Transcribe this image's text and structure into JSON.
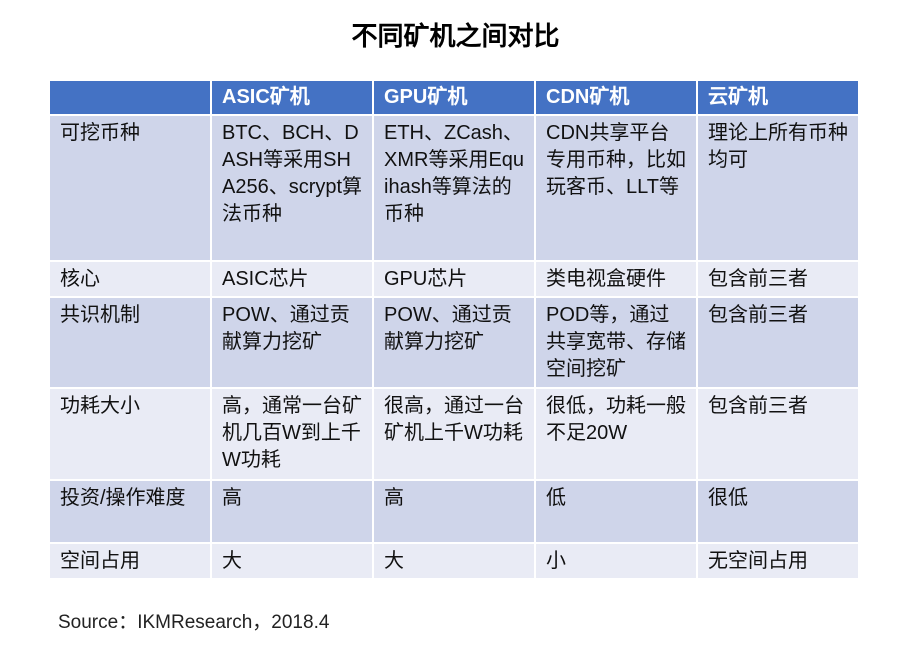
{
  "header": {
    "title": "不同矿机之间对比"
  },
  "table": {
    "columns": [
      "",
      "ASIC矿机",
      "GPU矿机",
      "CDN矿机",
      "云矿机"
    ],
    "rows": [
      [
        "可挖币种",
        "BTC、BCH、DASH等采用SHA256、scrypt算法币种",
        "ETH、ZCash、XMR等采用Equihash等算法的币种",
        "CDN共享平台专用币种，比如玩客币、LLT等",
        "理论上所有币种均可"
      ],
      [
        "核心",
        "ASIC芯片",
        "GPU芯片",
        "类电视盒硬件",
        "包含前三者"
      ],
      [
        "共识机制",
        "POW、通过贡献算力挖矿",
        "POW、通过贡献算力挖矿",
        "POD等，通过共享宽带、存储空间挖矿",
        "包含前三者"
      ],
      [
        "功耗大小",
        "高，通常一台矿机几百W到上千W功耗",
        "很高，通过一台矿机上千W功耗",
        "很低，功耗一般不足20W",
        "包含前三者"
      ],
      [
        "投资/操作难度",
        "高",
        "高",
        "低",
        "很低"
      ],
      [
        "空间占用",
        "大",
        "大",
        "小",
        "无空间占用"
      ]
    ]
  },
  "source": "Source：IKMResearch，2018.4"
}
